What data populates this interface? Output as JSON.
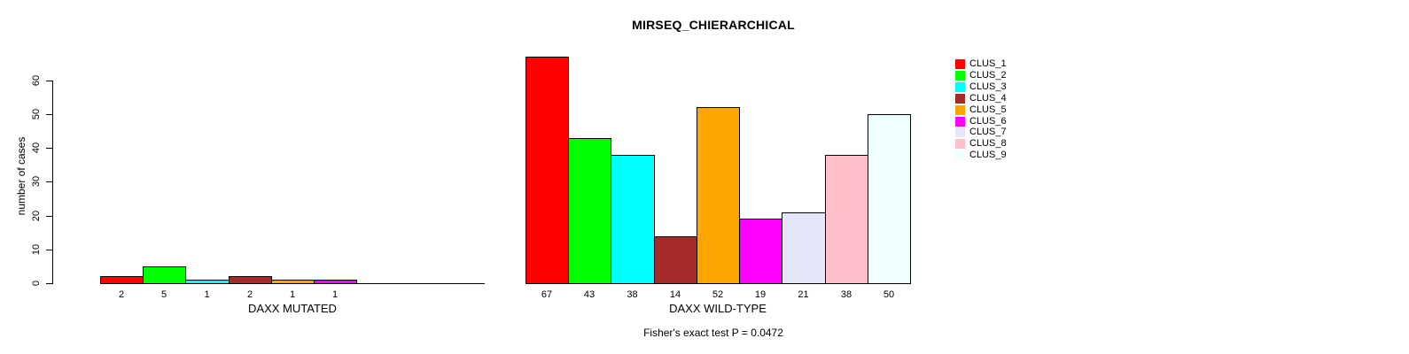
{
  "chart_data": {
    "type": "bar",
    "title": "MIRSEQ_CHIERARCHICAL",
    "ylabel": "number of cases",
    "ylim": [
      0,
      60
    ],
    "yticks": [
      0,
      10,
      20,
      30,
      40,
      50,
      60
    ],
    "grid": false,
    "legend_position": "right",
    "categories": [
      "CLUS_1",
      "CLUS_2",
      "CLUS_3",
      "CLUS_4",
      "CLUS_5",
      "CLUS_6",
      "CLUS_7",
      "CLUS_8",
      "CLUS_9"
    ],
    "colors": [
      "#FF0000",
      "#00FF00",
      "#00FFFF",
      "#A52A2A",
      "#FFA500",
      "#FF00FF",
      "#E6E6FA",
      "#FFC0CB",
      "#F0FFFF"
    ],
    "groups": [
      {
        "xlabel": "DAXX MUTATED",
        "values": [
          2,
          5,
          1,
          2,
          1,
          1,
          0,
          0,
          0
        ],
        "bar_labels": [
          "2",
          "5",
          "1",
          "2",
          "1",
          "1",
          "",
          "",
          ""
        ]
      },
      {
        "xlabel": "DAXX WILD-TYPE",
        "values": [
          67,
          43,
          38,
          14,
          52,
          19,
          21,
          38,
          50
        ],
        "bar_labels": [
          "67",
          "43",
          "38",
          "14",
          "52",
          "19",
          "21",
          "38",
          "50"
        ]
      }
    ],
    "legend": [
      {
        "label": "CLUS_1",
        "color": "#FF0000"
      },
      {
        "label": "CLUS_2",
        "color": "#00FF00"
      },
      {
        "label": "CLUS_3",
        "color": "#00FFFF"
      },
      {
        "label": "CLUS_4",
        "color": "#A52A2A"
      },
      {
        "label": "CLUS_5",
        "color": "#FFA500"
      },
      {
        "label": "CLUS_6",
        "color": "#FF00FF"
      },
      {
        "label": "CLUS_7",
        "color": "#E6E6FA"
      },
      {
        "label": "CLUS_8",
        "color": "#FFC0CB"
      },
      {
        "label": "CLUS_9",
        "color": "#F0FFFF"
      }
    ],
    "footnote": "Fisher's exact test P = 0.0472"
  }
}
